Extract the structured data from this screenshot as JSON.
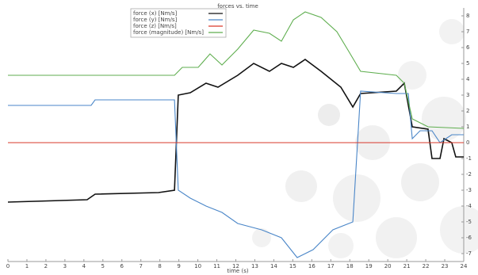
{
  "chart_data": {
    "type": "line",
    "title": "forces vs. time",
    "x_label": "time (s)",
    "xlim": [
      0,
      24
    ],
    "xticks": [
      0,
      1,
      2,
      3,
      4,
      5,
      6,
      7,
      8,
      9,
      10,
      11,
      12,
      13,
      14,
      15,
      16,
      17,
      18,
      19,
      20,
      21,
      22,
      23,
      24
    ],
    "ylim": [
      -7.5,
      8.5
    ],
    "yticks": [
      -7,
      -6,
      -5,
      -4,
      -3,
      -2,
      -1,
      0,
      1,
      2,
      3,
      4,
      5,
      6,
      7,
      8
    ],
    "grid": false,
    "legend": "upper left",
    "series": [
      {
        "name": "force (x) [Nm/s]",
        "color": "#111111",
        "x": [
          0,
          4.17,
          4.59,
          7.93,
          8.77,
          8.97,
          9.6,
          10.43,
          11.06,
          12.1,
          12.94,
          13.77,
          14.4,
          15.03,
          15.65,
          16.49,
          17.53,
          18.16,
          18.57,
          20.45,
          20.87,
          21.29,
          22.12,
          22.33,
          22.75,
          22.96,
          23.37,
          23.58,
          24
        ],
        "values": [
          -3.75,
          -3.6,
          -3.25,
          -3.15,
          -3.0,
          3.0,
          3.15,
          3.75,
          3.5,
          4.25,
          5.0,
          4.5,
          5.0,
          4.75,
          5.25,
          4.5,
          3.5,
          2.25,
          3.1,
          3.25,
          3.75,
          1.0,
          0.85,
          -1.0,
          -1.0,
          0.25,
          0,
          -0.9,
          -0.9
        ]
      },
      {
        "name": "force (y) [Nm/s]",
        "color": "#4a86c8",
        "x": [
          0,
          4.38,
          4.59,
          8.77,
          8.97,
          9.6,
          10.43,
          11.27,
          12.1,
          13.36,
          14.4,
          15.23,
          16.07,
          17.11,
          18.16,
          18.57,
          20.45,
          21.08,
          21.29,
          21.7,
          22.33,
          22.75,
          23.37,
          24
        ],
        "values": [
          2.35,
          2.35,
          2.7,
          2.7,
          -3.0,
          -3.5,
          -4.0,
          -4.4,
          -5.1,
          -5.5,
          -6.0,
          -7.25,
          -6.75,
          -5.5,
          -5.0,
          3.25,
          3.1,
          3.1,
          0.25,
          0.75,
          0.75,
          0,
          0.5,
          0.5
        ]
      },
      {
        "name": "force (z) [Nm/s]",
        "color": "#d9392b",
        "x": [
          0,
          24
        ],
        "values": [
          0,
          0
        ]
      },
      {
        "name": "force (magnitude) [Nm/s]",
        "color": "#5fae4f",
        "x": [
          0,
          8.77,
          9.18,
          10.02,
          10.64,
          11.27,
          12.1,
          12.94,
          13.77,
          14.4,
          15.03,
          15.65,
          16.49,
          17.32,
          17.95,
          18.57,
          20.45,
          20.87,
          21.29,
          22.12,
          24
        ],
        "values": [
          4.25,
          4.25,
          4.75,
          4.75,
          5.6,
          4.9,
          5.9,
          7.1,
          6.9,
          6.4,
          7.75,
          8.25,
          7.9,
          7.0,
          5.75,
          4.5,
          4.25,
          3.75,
          1.5,
          1.0,
          0.9
        ]
      }
    ]
  }
}
